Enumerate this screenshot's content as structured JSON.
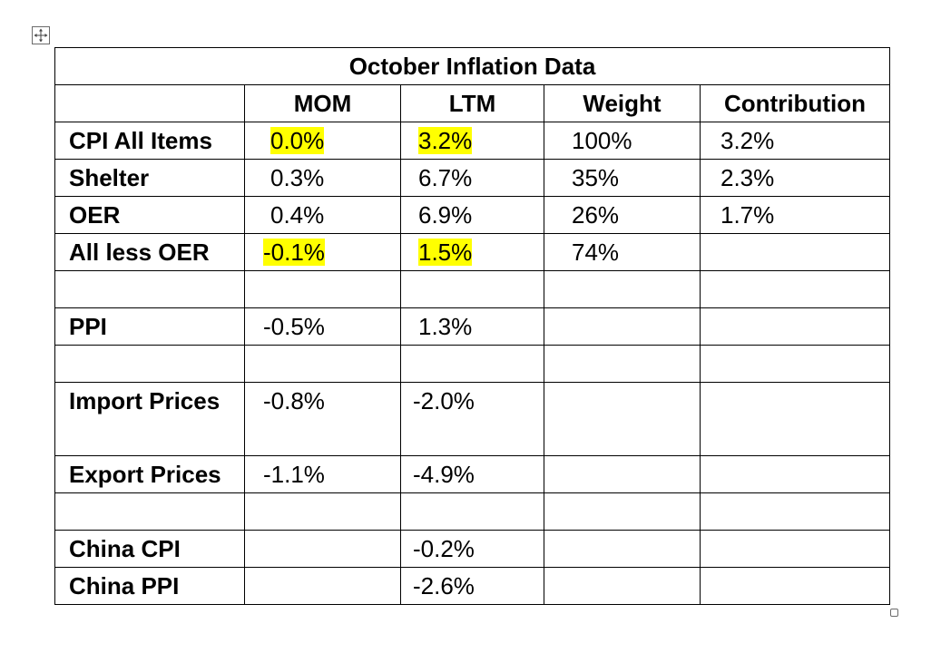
{
  "table": {
    "title": "October Inflation Data",
    "headers": [
      "",
      "MOM",
      "LTM",
      "Weight",
      "Contribution"
    ],
    "rows": [
      {
        "label": "CPI All Items",
        "mom": "0.0%",
        "ltm": "3.2%",
        "weight": "100%",
        "contribution": "3.2%"
      },
      {
        "label": "Shelter",
        "mom": "0.3%",
        "ltm": "6.7%",
        "weight": "35%",
        "contribution": "2.3%"
      },
      {
        "label": "OER",
        "mom": "0.4%",
        "ltm": "6.9%",
        "weight": "26%",
        "contribution": "1.7%"
      },
      {
        "label": "All less OER",
        "mom": "-0.1%",
        "ltm": "1.5%",
        "weight": "74%",
        "contribution": ""
      },
      {
        "label": "",
        "mom": "",
        "ltm": "",
        "weight": "",
        "contribution": ""
      },
      {
        "label": "PPI",
        "mom": "-0.5%",
        "ltm": "1.3%",
        "weight": "",
        "contribution": ""
      },
      {
        "label": "",
        "mom": "",
        "ltm": "",
        "weight": "",
        "contribution": ""
      },
      {
        "label": "Import Prices",
        "mom": "-0.8%",
        "ltm": "-2.0%",
        "weight": "",
        "contribution": ""
      },
      {
        "label": "Export Prices",
        "mom": "-1.1%",
        "ltm": "-4.9%",
        "weight": "",
        "contribution": ""
      },
      {
        "label": "",
        "mom": "",
        "ltm": "",
        "weight": "",
        "contribution": ""
      },
      {
        "label": "China CPI",
        "mom": "",
        "ltm": "-0.2%",
        "weight": "",
        "contribution": ""
      },
      {
        "label": "China PPI",
        "mom": "",
        "ltm": "-2.6%",
        "weight": "",
        "contribution": ""
      }
    ]
  },
  "colors": {
    "highlight": "#ffff00",
    "border": "#000000"
  },
  "icons": {
    "move_handle": "four-way-arrow-icon",
    "resize_handle": "resize-square-icon"
  }
}
